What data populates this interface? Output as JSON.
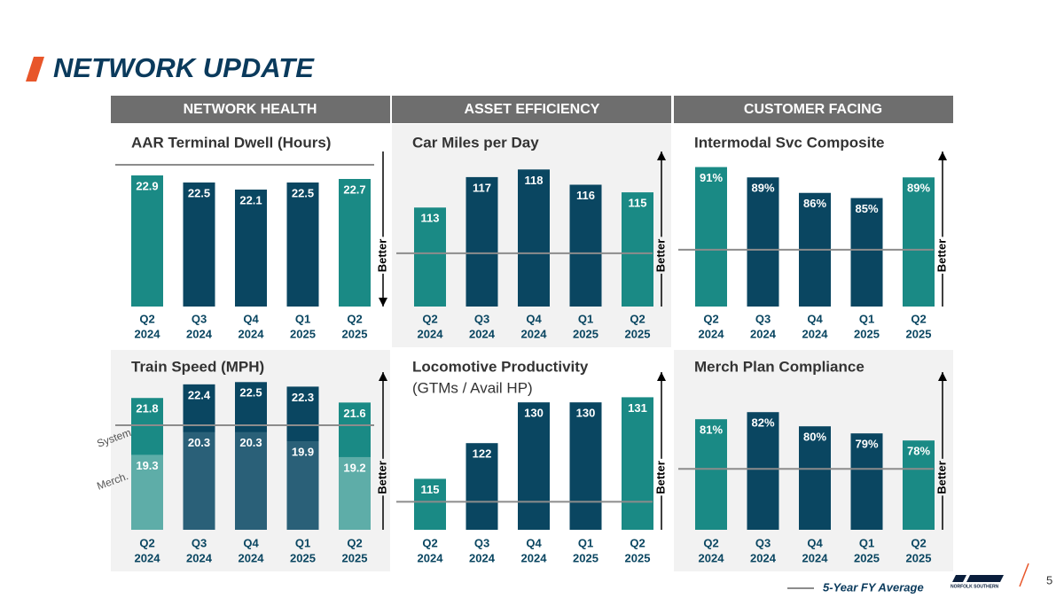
{
  "title": "NETWORK UPDATE",
  "sections": [
    "NETWORK HEALTH",
    "ASSET EFFICIENCY",
    "CUSTOMER FACING"
  ],
  "legend": {
    "name": "5-Year FY Average",
    "color": "#8c8c8c"
  },
  "logo": "NORFOLK SOUTHERN",
  "page_number": "5",
  "chart_data": [
    {
      "type": "bar",
      "title": "AAR Terminal Dwell (Hours)",
      "categories": [
        [
          "Q2",
          "2024"
        ],
        [
          "Q3",
          "2024"
        ],
        [
          "Q4",
          "2024"
        ],
        [
          "Q1",
          "2025"
        ],
        [
          "Q2",
          "2025"
        ]
      ],
      "values": [
        22.9,
        22.5,
        22.1,
        22.5,
        22.7
      ],
      "colors": [
        "#1a8a85",
        "#0a4661",
        "#0a4661",
        "#0a4661",
        "#1a8a85"
      ],
      "ylim": [
        15.5,
        23.75
      ],
      "average": 23.5,
      "annotation": "Better",
      "better_direction": "down"
    },
    {
      "type": "bar",
      "title": "Car Miles per Day",
      "categories": [
        [
          "Q2",
          "2024"
        ],
        [
          "Q3",
          "2024"
        ],
        [
          "Q4",
          "2024"
        ],
        [
          "Q1",
          "2025"
        ],
        [
          "Q2",
          "2025"
        ]
      ],
      "values": [
        113,
        117,
        118,
        116,
        115
      ],
      "colors": [
        "#1a8a85",
        "#0a4661",
        "#0a4661",
        "#0a4661",
        "#1a8a85"
      ],
      "ylim": [
        100,
        119.2
      ],
      "average": 107,
      "annotation": "Better",
      "better_direction": "up"
    },
    {
      "type": "bar",
      "title": "Intermodal Svc Composite",
      "categories": [
        [
          "Q2",
          "2024"
        ],
        [
          "Q3",
          "2024"
        ],
        [
          "Q4",
          "2024"
        ],
        [
          "Q1",
          "2025"
        ],
        [
          "Q2",
          "2025"
        ]
      ],
      "values": [
        91,
        89,
        86,
        85,
        89
      ],
      "value_labels": [
        "91%",
        "89%",
        "86%",
        "85%",
        "89%"
      ],
      "colors": [
        "#1a8a85",
        "#0a4661",
        "#0a4661",
        "#0a4661",
        "#1a8a85"
      ],
      "ylim": [
        64,
        92.3
      ],
      "average": 75,
      "annotation": "Better",
      "better_direction": "up"
    },
    {
      "type": "overlay-bar",
      "title": "Train Speed (MPH)",
      "categories": [
        [
          "Q2",
          "2024"
        ],
        [
          "Q3",
          "2024"
        ],
        [
          "Q4",
          "2024"
        ],
        [
          "Q1",
          "2025"
        ],
        [
          "Q2",
          "2025"
        ]
      ],
      "series": [
        {
          "name": "System",
          "values": [
            21.8,
            22.4,
            22.5,
            22.3,
            21.6
          ],
          "colors": [
            "#1a8a85",
            "#0a4661",
            "#0a4661",
            "#0a4661",
            "#1a8a85"
          ]
        },
        {
          "name": "Merch.",
          "values": [
            19.3,
            20.3,
            20.3,
            19.9,
            19.2
          ],
          "colors": [
            "#5eada8",
            "#2a6078",
            "#2a6078",
            "#2a6078",
            "#5eada8"
          ]
        }
      ],
      "ylim": [
        16,
        22.55
      ],
      "average": 20.6,
      "annotation": "Better",
      "better_direction": "up"
    },
    {
      "type": "bar",
      "title": "Locomotive Productivity",
      "subtitle": "(GTMs / Avail HP)",
      "categories": [
        [
          "Q2",
          "2024"
        ],
        [
          "Q3",
          "2024"
        ],
        [
          "Q4",
          "2024"
        ],
        [
          "Q1",
          "2025"
        ],
        [
          "Q2",
          "2025"
        ]
      ],
      "values": [
        115,
        122,
        130,
        130,
        131
      ],
      "colors": [
        "#1a8a85",
        "#0a4661",
        "#0a4661",
        "#0a4661",
        "#1a8a85"
      ],
      "ylim": [
        105,
        134.2
      ],
      "average": 110.5,
      "annotation": "Better",
      "better_direction": "up"
    },
    {
      "type": "bar",
      "title": "Merch Plan Compliance",
      "categories": [
        [
          "Q2",
          "2024"
        ],
        [
          "Q3",
          "2024"
        ],
        [
          "Q4",
          "2024"
        ],
        [
          "Q1",
          "2025"
        ],
        [
          "Q2",
          "2025"
        ]
      ],
      "values": [
        81,
        82,
        80,
        79,
        78
      ],
      "value_labels": [
        "81%",
        "82%",
        "80%",
        "79%",
        "78%"
      ],
      "colors": [
        "#1a8a85",
        "#0a4661",
        "#0a4661",
        "#0a4661",
        "#1a8a85"
      ],
      "ylim": [
        65.4,
        86.4
      ],
      "average": 74,
      "annotation": "Better",
      "better_direction": "up"
    }
  ]
}
